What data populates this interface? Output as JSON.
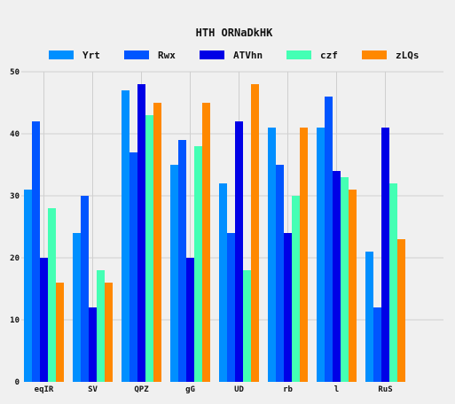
{
  "chart_data": {
    "type": "bar",
    "title": "HTH ORNaDkHK",
    "xlabel": "",
    "ylabel": "",
    "categories": [
      "eqIR",
      "SV",
      "QPZ",
      "gG",
      "UD",
      "rb",
      "l",
      "RuS"
    ],
    "series": [
      {
        "name": "Yrt",
        "color": "#008fff",
        "values": [
          31,
          24,
          47,
          35,
          32,
          41,
          41,
          21
        ]
      },
      {
        "name": "Rwx",
        "color": "#0055ff",
        "values": [
          42,
          30,
          37,
          39,
          24,
          35,
          46,
          12
        ]
      },
      {
        "name": "ATVhn",
        "color": "#0000e6",
        "values": [
          20,
          12,
          48,
          20,
          42,
          24,
          34,
          41
        ]
      },
      {
        "name": "czf",
        "color": "#44ffb4",
        "values": [
          28,
          18,
          43,
          38,
          18,
          30,
          33,
          32
        ]
      },
      {
        "name": "zLQs",
        "color": "#ff8800",
        "values": [
          16,
          16,
          45,
          45,
          48,
          41,
          31,
          23
        ]
      }
    ],
    "ylim": [
      0,
      50
    ],
    "yticks": [
      0,
      10,
      20,
      30,
      40,
      50
    ],
    "grid": true,
    "legend": "top"
  }
}
